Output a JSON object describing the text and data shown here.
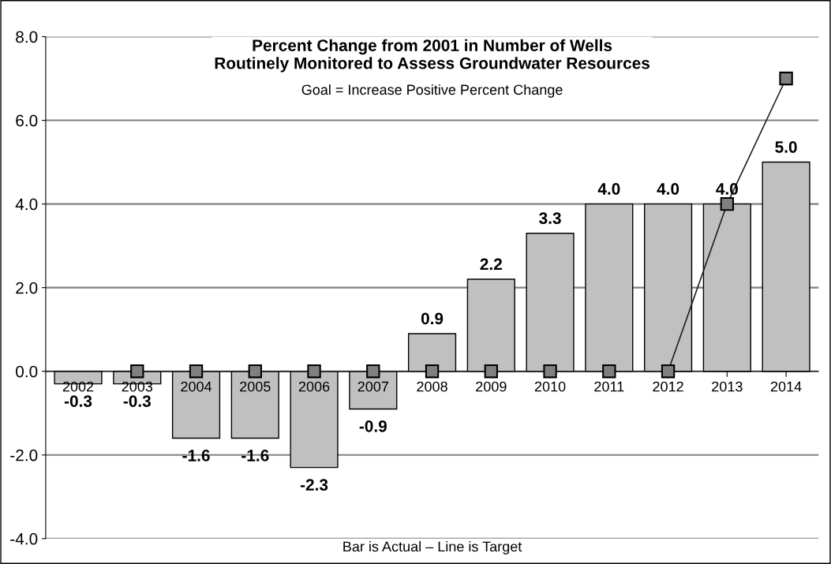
{
  "chart_data": {
    "type": "bar",
    "title": "Percent Change from 2001 in Number of Wells\nRoutinely Monitored to Assess Groundwater Resources",
    "subtitle": "Goal = Increase Positive Percent Change",
    "categories": [
      "2002",
      "2003",
      "2004",
      "2005",
      "2006",
      "2007",
      "2008",
      "2009",
      "2010",
      "2011",
      "2012",
      "2013",
      "2014"
    ],
    "series": [
      {
        "type": "bar",
        "color": "#c0c0c0",
        "values": [
          -0.3,
          -0.3,
          -1.6,
          -1.6,
          -2.3,
          -0.9,
          0.9,
          2.2,
          3.3,
          4.0,
          4.0,
          4.0,
          5.0
        ],
        "value_labels": [
          "-0.3",
          "-0.3",
          "-1.6",
          "-1.6",
          "-2.3",
          "-0.9",
          "0.9",
          "2.2",
          "3.3",
          "4.0",
          "4.0",
          "4.0",
          "5.0"
        ]
      },
      {
        "type": "line",
        "color": "#808080",
        "marker": "square",
        "values": [
          null,
          0,
          0,
          0,
          0,
          0,
          0,
          0,
          0,
          0,
          0,
          4,
          7
        ]
      }
    ],
    "ylim": [
      -4,
      8
    ],
    "yticks": [
      {
        "value": -4,
        "label": "-4.0"
      },
      {
        "value": -2,
        "label": "-2.0"
      },
      {
        "value": 0,
        "label": "0.0"
      },
      {
        "value": 2,
        "label": "2.0"
      },
      {
        "value": 4,
        "label": "4.0"
      },
      {
        "value": 6,
        "label": "6.0"
      },
      {
        "value": 8,
        "label": "8.0"
      }
    ],
    "grid": "y",
    "annotations": [
      "Bar is Actual – Line is Target"
    ]
  }
}
